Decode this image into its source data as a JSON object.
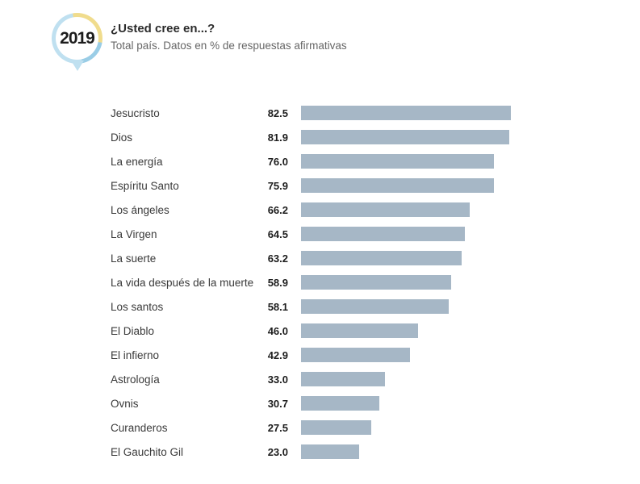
{
  "header": {
    "year": "2019",
    "title": "¿Usted cree en...?",
    "subtitle": "Total país. Datos en % de respuestas afirmativas"
  },
  "badge_colors": {
    "yellow": "#f0dc8d",
    "blue": "#9acde6",
    "light_blue": "#bfe0f0"
  },
  "chart_data": {
    "type": "bar",
    "orientation": "horizontal",
    "title": "¿Usted cree en...?",
    "subtitle": "Total país. Datos en % de respuestas afirmativas",
    "categories": [
      "Jesucristo",
      "Dios",
      "La energía",
      "Espíritu Santo",
      "Los ángeles",
      "La Virgen",
      "La suerte",
      "La vida después de la muerte",
      "Los santos",
      "El Diablo",
      "El infierno",
      "Astrología",
      "Ovnis",
      "Curanderos",
      "El Gauchito Gil"
    ],
    "values": [
      82.5,
      81.9,
      76.0,
      75.9,
      66.2,
      64.5,
      63.2,
      58.9,
      58.1,
      46.0,
      42.9,
      33.0,
      30.7,
      27.5,
      23.0
    ],
    "xlim": [
      0,
      100
    ],
    "bar_color": "#a6b7c6",
    "grid": false,
    "legend": false,
    "value_decimals": 1
  }
}
